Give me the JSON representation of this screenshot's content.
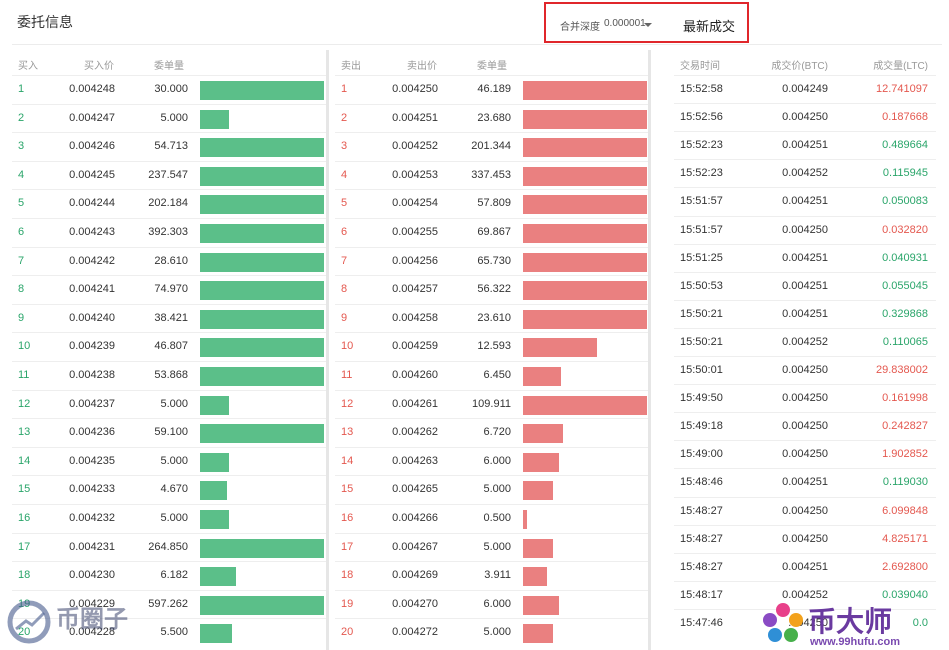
{
  "header": {
    "title": "委托信息",
    "depth_label": "合并深度",
    "depth_value": "0.000001",
    "latest_trades_label": "最新成交"
  },
  "buy": {
    "headers": {
      "idx": "买入",
      "price": "买入价",
      "qty": "委单量"
    },
    "rows": [
      {
        "idx": "1",
        "price": "0.004248",
        "qty": "30.000",
        "fill": 1.0
      },
      {
        "idx": "2",
        "price": "0.004247",
        "qty": "5.000",
        "fill": 0.23
      },
      {
        "idx": "3",
        "price": "0.004246",
        "qty": "54.713",
        "fill": 1.0
      },
      {
        "idx": "4",
        "price": "0.004245",
        "qty": "237.547",
        "fill": 1.0
      },
      {
        "idx": "5",
        "price": "0.004244",
        "qty": "202.184",
        "fill": 1.0
      },
      {
        "idx": "6",
        "price": "0.004243",
        "qty": "392.303",
        "fill": 1.0
      },
      {
        "idx": "7",
        "price": "0.004242",
        "qty": "28.610",
        "fill": 1.0
      },
      {
        "idx": "8",
        "price": "0.004241",
        "qty": "74.970",
        "fill": 1.0
      },
      {
        "idx": "9",
        "price": "0.004240",
        "qty": "38.421",
        "fill": 1.0
      },
      {
        "idx": "10",
        "price": "0.004239",
        "qty": "46.807",
        "fill": 1.0
      },
      {
        "idx": "11",
        "price": "0.004238",
        "qty": "53.868",
        "fill": 1.0
      },
      {
        "idx": "12",
        "price": "0.004237",
        "qty": "5.000",
        "fill": 0.23
      },
      {
        "idx": "13",
        "price": "0.004236",
        "qty": "59.100",
        "fill": 1.0
      },
      {
        "idx": "14",
        "price": "0.004235",
        "qty": "5.000",
        "fill": 0.23
      },
      {
        "idx": "15",
        "price": "0.004233",
        "qty": "4.670",
        "fill": 0.22
      },
      {
        "idx": "16",
        "price": "0.004232",
        "qty": "5.000",
        "fill": 0.23
      },
      {
        "idx": "17",
        "price": "0.004231",
        "qty": "264.850",
        "fill": 1.0
      },
      {
        "idx": "18",
        "price": "0.004230",
        "qty": "6.182",
        "fill": 0.29
      },
      {
        "idx": "19",
        "price": "0.004229",
        "qty": "597.262",
        "fill": 1.0
      },
      {
        "idx": "20",
        "price": "0.004228",
        "qty": "5.500",
        "fill": 0.26
      }
    ]
  },
  "sell": {
    "headers": {
      "idx": "卖出",
      "price": "卖出价",
      "qty": "委单量"
    },
    "rows": [
      {
        "idx": "1",
        "price": "0.004250",
        "qty": "46.189",
        "fill": 1.0
      },
      {
        "idx": "2",
        "price": "0.004251",
        "qty": "23.680",
        "fill": 1.0
      },
      {
        "idx": "3",
        "price": "0.004252",
        "qty": "201.344",
        "fill": 1.0
      },
      {
        "idx": "4",
        "price": "0.004253",
        "qty": "337.453",
        "fill": 1.0
      },
      {
        "idx": "5",
        "price": "0.004254",
        "qty": "57.809",
        "fill": 1.0
      },
      {
        "idx": "6",
        "price": "0.004255",
        "qty": "69.867",
        "fill": 1.0
      },
      {
        "idx": "7",
        "price": "0.004256",
        "qty": "65.730",
        "fill": 1.0
      },
      {
        "idx": "8",
        "price": "0.004257",
        "qty": "56.322",
        "fill": 1.0
      },
      {
        "idx": "9",
        "price": "0.004258",
        "qty": "23.610",
        "fill": 1.0
      },
      {
        "idx": "10",
        "price": "0.004259",
        "qty": "12.593",
        "fill": 0.6
      },
      {
        "idx": "11",
        "price": "0.004260",
        "qty": "6.450",
        "fill": 0.31
      },
      {
        "idx": "12",
        "price": "0.004261",
        "qty": "109.911",
        "fill": 1.0
      },
      {
        "idx": "13",
        "price": "0.004262",
        "qty": "6.720",
        "fill": 0.32
      },
      {
        "idx": "14",
        "price": "0.004263",
        "qty": "6.000",
        "fill": 0.29
      },
      {
        "idx": "15",
        "price": "0.004265",
        "qty": "5.000",
        "fill": 0.24
      },
      {
        "idx": "16",
        "price": "0.004266",
        "qty": "0.500",
        "fill": 0.03
      },
      {
        "idx": "17",
        "price": "0.004267",
        "qty": "5.000",
        "fill": 0.24
      },
      {
        "idx": "18",
        "price": "0.004269",
        "qty": "3.911",
        "fill": 0.19
      },
      {
        "idx": "19",
        "price": "0.004270",
        "qty": "6.000",
        "fill": 0.29
      },
      {
        "idx": "20",
        "price": "0.004272",
        "qty": "5.000",
        "fill": 0.24
      }
    ]
  },
  "trades": {
    "headers": {
      "time": "交易时间",
      "price": "成交价(BTC)",
      "qty": "成交量(LTC)"
    },
    "rows": [
      {
        "time": "15:52:58",
        "price": "0.004249",
        "qty": "12.741097",
        "side": "sell"
      },
      {
        "time": "15:52:56",
        "price": "0.004250",
        "qty": "0.187668",
        "side": "sell"
      },
      {
        "time": "15:52:23",
        "price": "0.004251",
        "qty": "0.489664",
        "side": "buy"
      },
      {
        "time": "15:52:23",
        "price": "0.004252",
        "qty": "0.115945",
        "side": "buy"
      },
      {
        "time": "15:51:57",
        "price": "0.004251",
        "qty": "0.050083",
        "side": "buy"
      },
      {
        "time": "15:51:57",
        "price": "0.004250",
        "qty": "0.032820",
        "side": "sell"
      },
      {
        "time": "15:51:25",
        "price": "0.004251",
        "qty": "0.040931",
        "side": "buy"
      },
      {
        "time": "15:50:53",
        "price": "0.004251",
        "qty": "0.055045",
        "side": "buy"
      },
      {
        "time": "15:50:21",
        "price": "0.004251",
        "qty": "0.329868",
        "side": "buy"
      },
      {
        "time": "15:50:21",
        "price": "0.004252",
        "qty": "0.110065",
        "side": "buy"
      },
      {
        "time": "15:50:01",
        "price": "0.004250",
        "qty": "29.838002",
        "side": "sell"
      },
      {
        "time": "15:49:50",
        "price": "0.004250",
        "qty": "0.161998",
        "side": "sell"
      },
      {
        "time": "15:49:18",
        "price": "0.004250",
        "qty": "0.242827",
        "side": "sell"
      },
      {
        "time": "15:49:00",
        "price": "0.004250",
        "qty": "1.902852",
        "side": "sell"
      },
      {
        "time": "15:48:46",
        "price": "0.004251",
        "qty": "0.119030",
        "side": "buy"
      },
      {
        "time": "15:48:27",
        "price": "0.004250",
        "qty": "6.099848",
        "side": "sell"
      },
      {
        "time": "15:48:27",
        "price": "0.004250",
        "qty": "4.825171",
        "side": "sell"
      },
      {
        "time": "15:48:27",
        "price": "0.004251",
        "qty": "2.692800",
        "side": "sell"
      },
      {
        "time": "15:48:17",
        "price": "0.004252",
        "qty": "0.039040",
        "side": "buy"
      },
      {
        "time": "15:47:46",
        "price": "0.004250",
        "qty": "0.0",
        "side": "buy"
      }
    ]
  },
  "colors": {
    "buy_bar": "#5bbf89",
    "sell_bar": "#ea8080",
    "buy_text": "#2aa56a",
    "sell_text": "#e4584f",
    "highlight_border": "#e0262b"
  },
  "watermarks": {
    "left_text": "币圈子",
    "right_text": "币大师",
    "right_url": "www.99hufu.com"
  }
}
